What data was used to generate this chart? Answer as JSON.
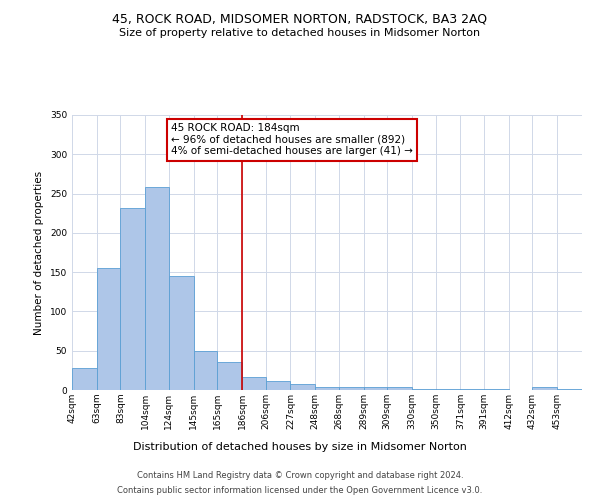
{
  "title": "45, ROCK ROAD, MIDSOMER NORTON, RADSTOCK, BA3 2AQ",
  "subtitle": "Size of property relative to detached houses in Midsomer Norton",
  "bar_heights": [
    28,
    155,
    232,
    258,
    145,
    50,
    36,
    17,
    11,
    8,
    4,
    4,
    4,
    4,
    1,
    1,
    1,
    1,
    0,
    4,
    1
  ],
  "bin_labels": [
    "42sqm",
    "63sqm",
    "83sqm",
    "104sqm",
    "124sqm",
    "145sqm",
    "165sqm",
    "186sqm",
    "206sqm",
    "227sqm",
    "248sqm",
    "268sqm",
    "289sqm",
    "309sqm",
    "330sqm",
    "350sqm",
    "371sqm",
    "391sqm",
    "412sqm",
    "432sqm",
    "453sqm"
  ],
  "bin_edges": [
    42,
    63,
    83,
    104,
    124,
    145,
    165,
    186,
    206,
    227,
    248,
    268,
    289,
    309,
    330,
    350,
    371,
    391,
    412,
    432,
    453,
    474
  ],
  "bar_color": "#aec6e8",
  "bar_edge_color": "#5a9fd4",
  "vline_x": 186,
  "vline_color": "#cc0000",
  "ylabel": "Number of detached properties",
  "xlabel": "Distribution of detached houses by size in Midsomer Norton",
  "ylim": [
    0,
    350
  ],
  "yticks": [
    0,
    50,
    100,
    150,
    200,
    250,
    300,
    350
  ],
  "annotation_title": "45 ROCK ROAD: 184sqm",
  "annotation_line1": "← 96% of detached houses are smaller (892)",
  "annotation_line2": "4% of semi-detached houses are larger (41) →",
  "annotation_box_color": "#ffffff",
  "annotation_box_edge_color": "#cc0000",
  "footer_line1": "Contains HM Land Registry data © Crown copyright and database right 2024.",
  "footer_line2": "Contains public sector information licensed under the Open Government Licence v3.0.",
  "background_color": "#ffffff",
  "grid_color": "#d0d8e8",
  "title_fontsize": 9,
  "subtitle_fontsize": 8,
  "ylabel_fontsize": 7.5,
  "xlabel_fontsize": 8,
  "tick_fontsize": 6.5,
  "annotation_fontsize": 7.5,
  "footer_fontsize": 6
}
